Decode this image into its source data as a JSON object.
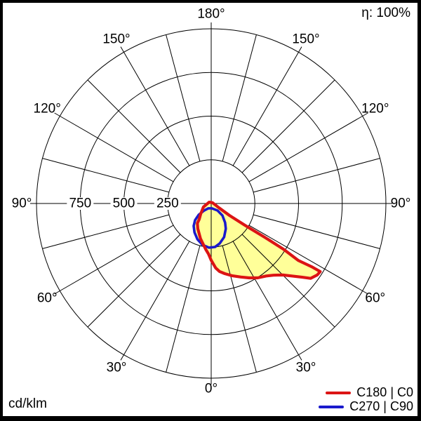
{
  "meta": {
    "efficiency_label": "η: 100%",
    "unit_label": "cd/klm"
  },
  "legend": [
    {
      "label": "C180 | C0",
      "color": "#dc1414"
    },
    {
      "label": "C270 | C90",
      "color": "#1a1acc"
    }
  ],
  "chart_data": {
    "type": "polar-photometric-intensity",
    "unit": "cd/klm",
    "efficiency_percent": 100,
    "r_max": 1000,
    "radial_tick_step": 250,
    "radial_tick_values": [
      750,
      500,
      250
    ],
    "radial_tick_labels": [
      "750",
      "500",
      "250"
    ],
    "angle_label_step_deg": 30,
    "spoke_step_deg": 15,
    "angle_labels": [
      "0°",
      "30°",
      "60°",
      "90°",
      "120°",
      "150°",
      "180°"
    ],
    "angle_labels_mirrored": true,
    "grid": true,
    "grid_color": "#000000",
    "fill_color": "#ffff99",
    "theta_convention": "degrees from nadir (0 = straight down); positive = right half of diagram, negative = left half",
    "series": [
      {
        "name": "C180 | C0",
        "color": "#dc1414",
        "stroke_width": 4.2,
        "points_theta_intensity": [
          [
            -124,
            14
          ],
          [
            -66,
            49
          ],
          [
            -45,
            85
          ],
          [
            -37,
            115
          ],
          [
            -35,
            138
          ],
          [
            -28,
            163
          ],
          [
            -17,
            210
          ],
          [
            -7,
            263
          ],
          [
            -3,
            290
          ],
          [
            0,
            325
          ],
          [
            4,
            370
          ],
          [
            7,
            392
          ],
          [
            11,
            409
          ],
          [
            16,
            430
          ],
          [
            22,
            454
          ],
          [
            27,
            478
          ],
          [
            32,
            502
          ],
          [
            37,
            520
          ],
          [
            41,
            544
          ],
          [
            45,
            579
          ],
          [
            48,
            620
          ],
          [
            51,
            671
          ],
          [
            53,
            712
          ],
          [
            56,
            732
          ],
          [
            58,
            736
          ],
          [
            57.8,
            679
          ],
          [
            56.8,
            595
          ],
          [
            57.7,
            489
          ],
          [
            57.7,
            361
          ],
          [
            57.2,
            229
          ],
          [
            56.8,
            125
          ],
          [
            61,
            50
          ],
          [
            117,
            9
          ]
        ]
      },
      {
        "name": "C270 | C90",
        "color": "#1a1acc",
        "stroke_width": 3.6,
        "points_theta_intensity": [
          [
            8,
            28
          ],
          [
            42,
            54
          ],
          [
            43,
            94
          ],
          [
            36,
            135
          ],
          [
            30,
            167
          ],
          [
            21,
            206
          ],
          [
            12,
            234
          ],
          [
            5,
            250
          ],
          [
            -3,
            253
          ],
          [
            -12,
            242
          ],
          [
            -21,
            220
          ],
          [
            -30,
            191
          ],
          [
            -38,
            163
          ],
          [
            -44,
            133
          ],
          [
            -48,
            97
          ],
          [
            -45,
            57
          ],
          [
            -30,
            32
          ]
        ]
      }
    ]
  }
}
